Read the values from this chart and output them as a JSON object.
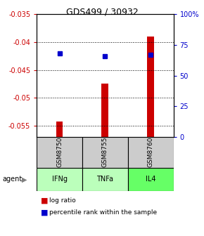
{
  "title": "GDS499 / 30932",
  "samples": [
    "GSM8750",
    "GSM8755",
    "GSM8760"
  ],
  "agents": [
    "IFNg",
    "TNFa",
    "IL4"
  ],
  "log_ratios": [
    -0.0543,
    -0.0475,
    -0.039
  ],
  "percentile_ranks": [
    68,
    66,
    67
  ],
  "ylim_left": [
    -0.057,
    -0.035
  ],
  "ylim_right": [
    0,
    100
  ],
  "yticks_left": [
    -0.055,
    -0.05,
    -0.045,
    -0.04,
    -0.035
  ],
  "ytick_labels_left": [
    "-0.055",
    "-0.05",
    "-0.045",
    "-0.04",
    "-0.035"
  ],
  "yticks_right": [
    0,
    25,
    50,
    75,
    100
  ],
  "ytick_labels_right": [
    "0",
    "25",
    "50",
    "75",
    "100%"
  ],
  "bar_color": "#cc0000",
  "dot_color": "#0000cc",
  "agent_colors": [
    "#aaffaa",
    "#aaffaa",
    "#aaffaa"
  ],
  "sample_bg_color": "#cccccc",
  "grid_color": "#000000",
  "title_color": "#000000",
  "left_axis_color": "#cc0000",
  "right_axis_color": "#0000cc"
}
